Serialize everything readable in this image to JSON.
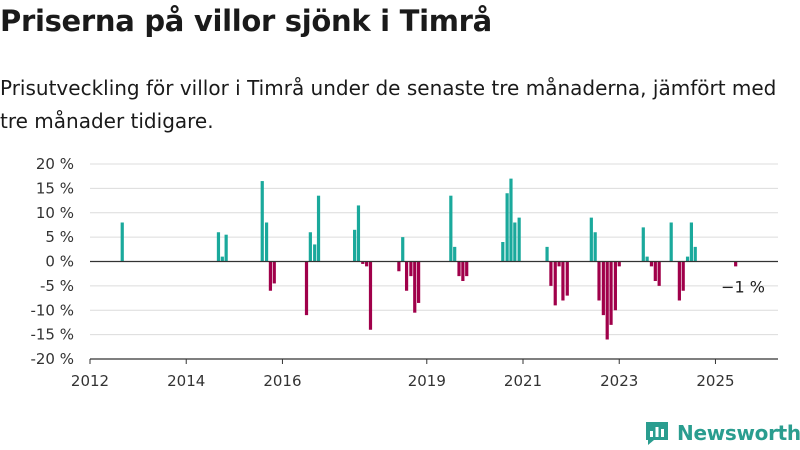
{
  "title": "Priserna på villor sjönk i Timrå",
  "subtitle": "Prisutveckling för villor i Timrå under de senaste tre månaderna, jämfört med tre månader tidigare.",
  "brand": {
    "name": "Newsworthy",
    "icon": "bar-chart-logo-icon"
  },
  "colors": {
    "positive": "#1aa99c",
    "negative": "#a0004a",
    "grid": "#dcdcdc",
    "axis": "#333333",
    "brand": "#2a9d8f"
  },
  "chart_data": {
    "type": "bar",
    "title": "",
    "xlabel": "",
    "ylabel": "",
    "ylim": [
      -20,
      20
    ],
    "yticks": [
      -20,
      -15,
      -10,
      -5,
      0,
      5,
      10,
      15,
      20
    ],
    "ytick_labels": [
      "-20 %",
      "-15 %",
      "-10 %",
      "-5 %",
      "0 %",
      "5 %",
      "10 %",
      "15 %",
      "20 %"
    ],
    "xlim": [
      2012.0,
      2026.3
    ],
    "xticks": [
      2012,
      2014,
      2016,
      2019,
      2021,
      2023,
      2025
    ],
    "xtick_labels": [
      "2012",
      "2014",
      "2016",
      "2019",
      "2021",
      "2023",
      "2025"
    ],
    "grid": true,
    "last_value_label": "−1 %",
    "x": [
      2012.67,
      2014.67,
      2014.75,
      2014.83,
      2015.58,
      2015.67,
      2015.75,
      2015.83,
      2016.5,
      2016.58,
      2016.67,
      2016.75,
      2017.5,
      2017.58,
      2017.67,
      2017.75,
      2017.83,
      2018.42,
      2018.5,
      2018.58,
      2018.67,
      2018.75,
      2018.83,
      2019.5,
      2019.58,
      2019.67,
      2019.75,
      2019.83,
      2020.58,
      2020.67,
      2020.75,
      2020.83,
      2020.92,
      2021.5,
      2021.58,
      2021.67,
      2021.75,
      2021.83,
      2021.92,
      2022.42,
      2022.5,
      2022.58,
      2022.67,
      2022.75,
      2022.83,
      2022.92,
      2023.0,
      2023.5,
      2023.58,
      2023.67,
      2023.75,
      2023.83,
      2024.08,
      2024.25,
      2024.33,
      2024.42,
      2024.5,
      2024.58,
      2025.42
    ],
    "values": [
      8,
      6,
      1,
      5.5,
      16.5,
      8,
      -6,
      -4.5,
      -11,
      6,
      3.5,
      13.5,
      6.5,
      11.5,
      -0.5,
      -1,
      -14,
      -2,
      5,
      -6,
      -3,
      -10.5,
      -8.5,
      13.5,
      3,
      -3,
      -4,
      -3,
      4,
      14,
      17,
      8,
      9,
      3,
      -5,
      -9,
      -1,
      -8,
      -7,
      9,
      6,
      -8,
      -11,
      -16,
      -13,
      -10,
      -1,
      7,
      1,
      -1,
      -4,
      -5,
      8,
      -8,
      -6,
      1,
      8,
      3,
      -1
    ]
  }
}
